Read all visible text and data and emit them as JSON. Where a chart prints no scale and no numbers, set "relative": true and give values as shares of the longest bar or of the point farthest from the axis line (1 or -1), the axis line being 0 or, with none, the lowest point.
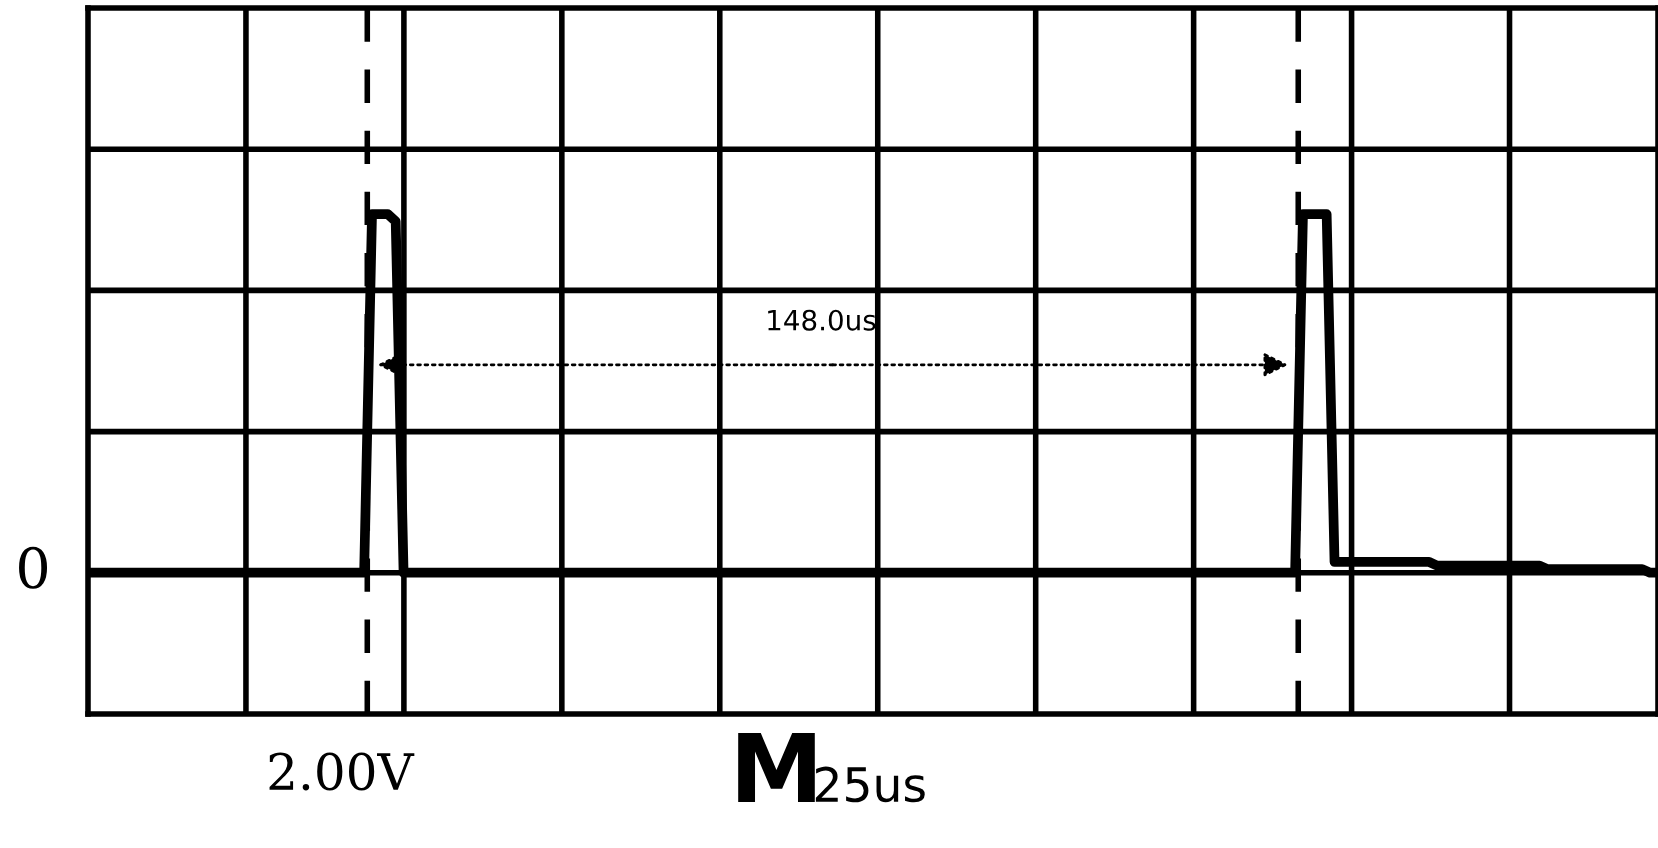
{
  "chart_data": {
    "type": "line",
    "relative": true,
    "categories": [
      null,
      null,
      null,
      null,
      null,
      null,
      null,
      null,
      null,
      null,
      null,
      null,
      null,
      null,
      null,
      null,
      null,
      null,
      null,
      null,
      null,
      null,
      null,
      null,
      null,
      null,
      null,
      null,
      null,
      null,
      null,
      null,
      null,
      null,
      null,
      null,
      null,
      null,
      null,
      null,
      null,
      null,
      null,
      null,
      null,
      null,
      null,
      null,
      null,
      null,
      null,
      null,
      null,
      null,
      null,
      null,
      null,
      null,
      null,
      null,
      null,
      null,
      null,
      null,
      null,
      null,
      null,
      null,
      null,
      null,
      null,
      null,
      null,
      null,
      null,
      null,
      null,
      null,
      null,
      null,
      null,
      null,
      null,
      null,
      null,
      null,
      null,
      null,
      null,
      null,
      null,
      null,
      null,
      null,
      null,
      null,
      null,
      null,
      null,
      null,
      null,
      null,
      null,
      null,
      null,
      null,
      null,
      null,
      null,
      null,
      null,
      null,
      null,
      null,
      null,
      null,
      null,
      null,
      null,
      null,
      null,
      null,
      null,
      null,
      null,
      null,
      null,
      null,
      null,
      null,
      null,
      null,
      null,
      null,
      null,
      null,
      null,
      null,
      null,
      null,
      null,
      null,
      null,
      null,
      null,
      null,
      null,
      null,
      null,
      null,
      null,
      null,
      null,
      null,
      null,
      null,
      null,
      null,
      null,
      null,
      null,
      null,
      null,
      null,
      null,
      null,
      null,
      null,
      null,
      null,
      null,
      null,
      null,
      null,
      null,
      null,
      null,
      null,
      null,
      null,
      null,
      null,
      null,
      null,
      null,
      null,
      null,
      null,
      null,
      null,
      null,
      null,
      null,
      null,
      null,
      null,
      null,
      null,
      null,
      null
    ],
    "series": [
      {
        "color": "#000000",
        "values": [
          0,
          0,
          0,
          0,
          0,
          0,
          0,
          0,
          0,
          0,
          0,
          0,
          0,
          0,
          0,
          0,
          0,
          0,
          0,
          0,
          0,
          0,
          0,
          0,
          0,
          0,
          0,
          0,
          0,
          0,
          0,
          0,
          0,
          0,
          0,
          0,
          1,
          1,
          1,
          0.98,
          0,
          0,
          0,
          0,
          0,
          0,
          0,
          0,
          0,
          0,
          0,
          0,
          0,
          0,
          0,
          0,
          0,
          0,
          0,
          0,
          0,
          0,
          0,
          0,
          0,
          0,
          0,
          0,
          0,
          0,
          0,
          0,
          0,
          0,
          0,
          0,
          0,
          0,
          0,
          0,
          0,
          0,
          0,
          0,
          0,
          0,
          0,
          0,
          0,
          0,
          0,
          0,
          0,
          0,
          0,
          0,
          0,
          0,
          0,
          0,
          0,
          0,
          0,
          0,
          0,
          0,
          0,
          0,
          0,
          0,
          0,
          0,
          0,
          0,
          0,
          0,
          0,
          0,
          0,
          0,
          0,
          0,
          0,
          0,
          0,
          0,
          0,
          0,
          0,
          0,
          0,
          0,
          0,
          0,
          0,
          0,
          0,
          0,
          0,
          0,
          0,
          0,
          0,
          0,
          0,
          0,
          0,
          0,
          0,
          0,
          0,
          0,
          0,
          0,
          1,
          1,
          1,
          1,
          0.03,
          0.03,
          0.03,
          0.03,
          0.03,
          0.03,
          0.03,
          0.03,
          0.03,
          0.03,
          0.03,
          0.03,
          0.03,
          0.02,
          0.02,
          0.02,
          0.02,
          0.02,
          0.02,
          0.02,
          0.02,
          0.02,
          0.02,
          0.02,
          0.02,
          0.02,
          0.02,
          0.01,
          0.01,
          0.01,
          0.01,
          0.01,
          0.01,
          0.01,
          0.01,
          0.01,
          0.01,
          0.01,
          0.01,
          0.01,
          0,
          0
        ]
      }
    ],
    "tick_labels": false,
    "grid": true,
    "marker": "none",
    "line_style": "solid",
    "legend": false,
    "annotations": [
      "148.0us",
      "2.00V",
      "M",
      "25us",
      "0"
    ]
  }
}
